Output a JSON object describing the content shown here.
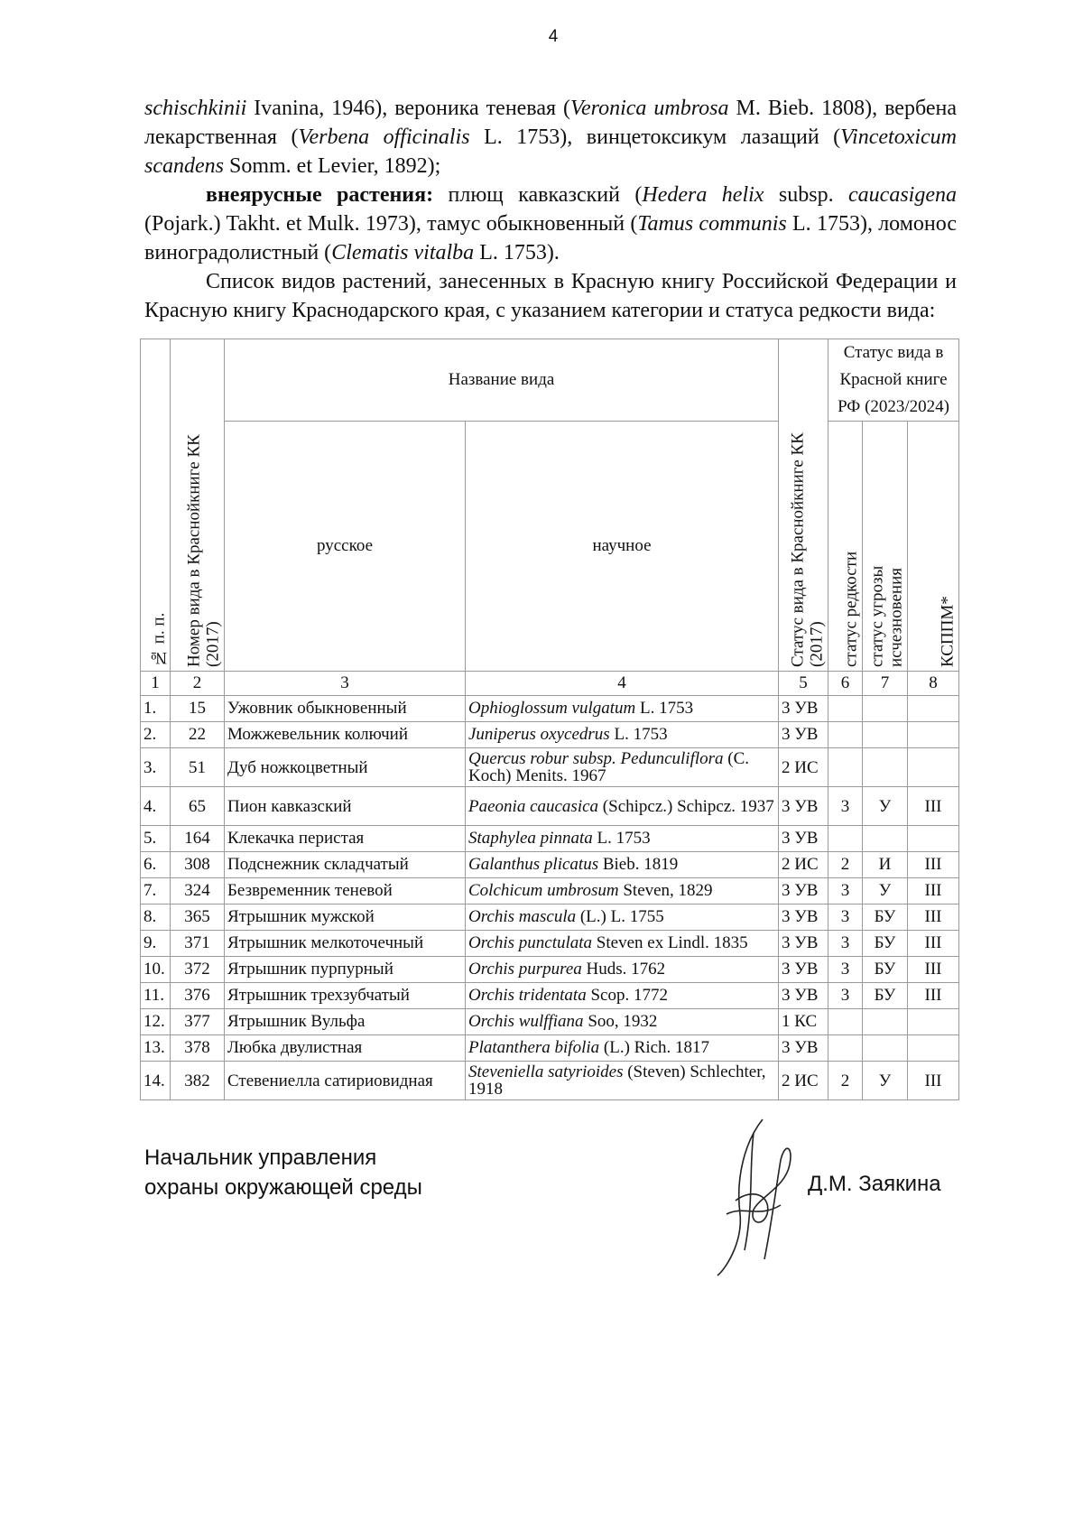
{
  "page_number": "4",
  "paragraphs": [
    [
      {
        "t": "schischkinii",
        "s": "i"
      },
      {
        "t": " Ivanina, 1946), вероника теневая ("
      },
      {
        "t": "Veronica umbrosa",
        "s": "i"
      },
      {
        "t": " M. Bieb. 1808), вербена лекарственная ("
      },
      {
        "t": "Verbena officinalis",
        "s": "i"
      },
      {
        "t": " L. 1753), винцетоксикум лазащий ("
      },
      {
        "t": "Vincetoxicum scandens",
        "s": "i"
      },
      {
        "t": " Somm. et Levier, 1892);"
      }
    ],
    [
      {
        "t": "внеярусные растения:",
        "s": "b"
      },
      {
        "t": " плющ кавказский ("
      },
      {
        "t": "Hedera helix",
        "s": "i"
      },
      {
        "t": " subsp. "
      },
      {
        "t": "caucasigena",
        "s": "i"
      },
      {
        "t": " (Pojark.) Takht. et Mulk. 1973), тамус обыкновенный ("
      },
      {
        "t": "Tamus communis",
        "s": "i"
      },
      {
        "t": " L. 1753), ломонос виноградолистный ("
      },
      {
        "t": "Clematis vitalba",
        "s": "i"
      },
      {
        "t": " L. 1753)."
      }
    ],
    [
      {
        "t": "Список видов растений, занесенных в Красную книгу Российской Федерации и Красную книгу Краснодарского края, с указанием категории и статуса редкости вида:"
      }
    ]
  ],
  "table": {
    "headers": {
      "num": "№ п. п.",
      "kk_number": "Номер вида в Краснойкниге КК\n(2017)",
      "name": "Название вида",
      "russian": "русское",
      "scientific": "научное",
      "kk_status": "Статус вида в Краснойкниге КК\n(2017)",
      "rf_status": "Статус вида в Красной книге РФ (2023/2024)",
      "rarity": "статус редкости",
      "threat": "статус угрозы\nисчезновения",
      "kspp": "КСППМ*"
    },
    "column_numbers": [
      "1",
      "2",
      "3",
      "4",
      "5",
      "6",
      "7",
      "8"
    ],
    "rows": [
      {
        "n": "1.",
        "kk": "15",
        "ru": "Ужовник обыкновенный",
        "sci": "Ophioglossum vulgatum",
        "auth": " L. 1753",
        "st": "3 УВ",
        "r": "",
        "t": "",
        "k": ""
      },
      {
        "n": "2.",
        "kk": "22",
        "ru": "Можжевельник колючий",
        "sci": "Juniperus oxycedrus",
        "auth": " L. 1753",
        "st": "3 УВ",
        "r": "",
        "t": "",
        "k": ""
      },
      {
        "n": "3.",
        "kk": "51",
        "ru": "Дуб ножкоцветный",
        "sci": "Quercus robur subsp. Pedunculiflora",
        "auth": " (C. Koch) Menits. 1967",
        "st": "2 ИС",
        "r": "",
        "t": "",
        "k": ""
      },
      {
        "n": "4.",
        "kk": "65",
        "ru": "Пион кавказский",
        "sci": "Paeonia caucasica",
        "auth": " (Schipcz.) Schipcz. 1937",
        "st": "3 УВ",
        "r": "3",
        "t": "У",
        "k": "III"
      },
      {
        "n": "5.",
        "kk": "164",
        "ru": "Клекачка перистая",
        "sci": "Staphylea pinnata",
        "auth": " L. 1753",
        "st": "3 УВ",
        "r": "",
        "t": "",
        "k": ""
      },
      {
        "n": "6.",
        "kk": "308",
        "ru": "Подснежник складчатый",
        "sci": "Galanthus plicatus",
        "auth": " Bieb. 1819",
        "st": "2 ИС",
        "r": "2",
        "t": "И",
        "k": "III"
      },
      {
        "n": "7.",
        "kk": "324",
        "ru": "Безвременник теневой",
        "sci": "Colchicum umbrosum",
        "auth": " Steven, 1829",
        "st": "3 УВ",
        "r": "3",
        "t": "У",
        "k": "III"
      },
      {
        "n": "8.",
        "kk": "365",
        "ru": "Ятрышник мужской",
        "sci": "Orchis mascula",
        "auth": " (L.) L. 1755",
        "st": "3 УВ",
        "r": "3",
        "t": "БУ",
        "k": "III"
      },
      {
        "n": "9.",
        "kk": "371",
        "ru": "Ятрышник мелкоточечный",
        "sci": "Orchis punctulata",
        "auth": " Steven ex Lindl. 1835",
        "st": "3 УВ",
        "r": "3",
        "t": "БУ",
        "k": "III"
      },
      {
        "n": "10.",
        "kk": "372",
        "ru": "Ятрышник пурпурный",
        "sci": "Orchis purpurea",
        "auth": " Huds. 1762",
        "st": "3 УВ",
        "r": "3",
        "t": "БУ",
        "k": "III"
      },
      {
        "n": "11.",
        "kk": "376",
        "ru": "Ятрышник трехзубчатый",
        "sci": "Orchis tridentata",
        "auth": " Scop. 1772",
        "st": "3 УВ",
        "r": "3",
        "t": "БУ",
        "k": "III"
      },
      {
        "n": "12.",
        "kk": "377",
        "ru": "Ятрышник Вульфа",
        "sci": "Orchis wulffiana",
        "auth": " Soo, 1932",
        "st": "1 КС",
        "r": "",
        "t": "",
        "k": ""
      },
      {
        "n": "13.",
        "kk": "378",
        "ru": "Любка двулистная",
        "sci": "Platanthera bifolia",
        "auth": " (L.) Rich. 1817",
        "st": "3 УВ",
        "r": "",
        "t": "",
        "k": ""
      },
      {
        "n": "14.",
        "kk": "382",
        "ru": "Стевениелла сатириовидная",
        "sci": "Steveniella satyrioides",
        "auth": " (Steven) Schlechter, 1918",
        "st": "2 ИС",
        "r": "2",
        "t": "У",
        "k": "III"
      }
    ]
  },
  "footer": {
    "position_line1": "Начальник управления",
    "position_line2": "охраны окружающей среды",
    "name": "Д.М. Заякина"
  }
}
